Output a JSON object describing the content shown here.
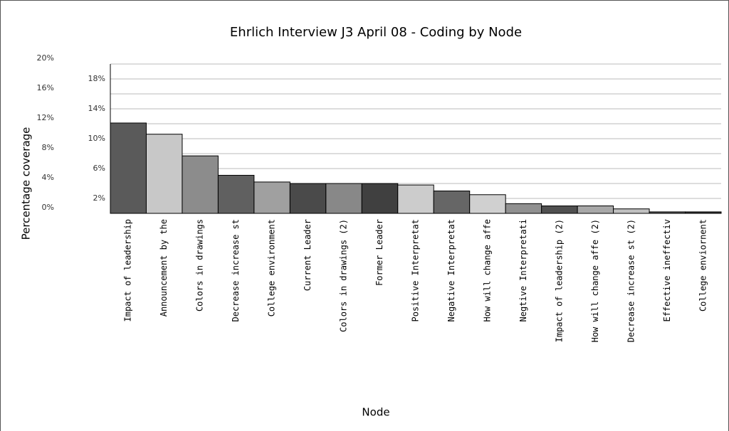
{
  "chart_data": {
    "type": "bar",
    "title": "Ehrlich Interview J3 April 08 - Coding by Node",
    "x_label": "Node",
    "y_label": "Percentage coverage",
    "categories": [
      "Impact of leadership",
      "Announcement by the",
      "Colors in drawings",
      "Decrease increase st",
      "College environment",
      "Current Leader",
      "Colors in drawings (2)",
      "Former Leader",
      "Positive Interpretat",
      "Negative Interpretat",
      "How will change affe",
      "Negtive Interpretati",
      "Impact of leadership (2)",
      "How will change affe (2)",
      "Decrease increase st (2)",
      "Effective ineffectiv",
      "College enviornent"
    ],
    "values": [
      12.1,
      10.6,
      7.7,
      5.1,
      4.2,
      4.0,
      4.0,
      4.0,
      3.8,
      3.0,
      2.5,
      1.3,
      1.0,
      1.0,
      0.6,
      0.2,
      0.2
    ],
    "colors": [
      "#5a5a5a",
      "#c8c8c8",
      "#8c8c8c",
      "#606060",
      "#a0a0a0",
      "#4a4a4a",
      "#888888",
      "#404040",
      "#cccccc",
      "#666666",
      "#d0d0d0",
      "#909090",
      "#505050",
      "#a8a8a8",
      "#c0c0c0",
      "#555555",
      "#333333"
    ],
    "ylim": [
      0,
      20
    ],
    "yticks": [
      {
        "value": 0,
        "label": "0%"
      },
      {
        "value": 2,
        "label": "2%"
      },
      {
        "value": 4,
        "label": "4%"
      },
      {
        "value": 6,
        "label": "6%"
      },
      {
        "value": 8,
        "label": "8%"
      },
      {
        "value": 10,
        "label": "10%"
      },
      {
        "value": 12,
        "label": "12%"
      },
      {
        "value": 14,
        "label": "14%"
      },
      {
        "value": 16,
        "label": "16%"
      },
      {
        "value": 18,
        "label": "18%"
      },
      {
        "value": 20,
        "label": "20%"
      }
    ],
    "grid": true
  }
}
